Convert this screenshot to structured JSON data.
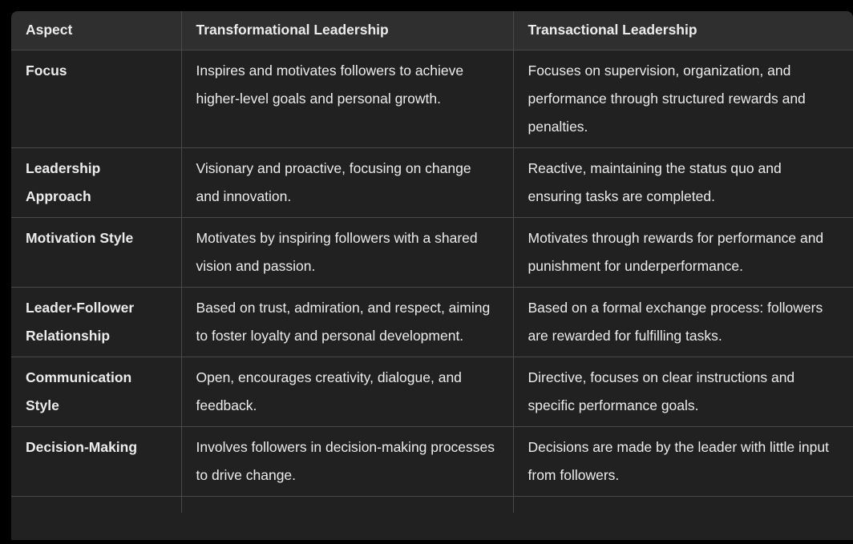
{
  "table": {
    "headers": [
      "Aspect",
      "Transformational Leadership",
      "Transactional Leadership"
    ],
    "rows": [
      {
        "aspect": "Focus",
        "transformational": "Inspires and motivates followers to achieve higher-level goals and personal growth.",
        "transactional": "Focuses on supervision, organization, and performance through structured rewards and penalties."
      },
      {
        "aspect": "Leadership Approach",
        "transformational": "Visionary and proactive, focusing on change and innovation.",
        "transactional": "Reactive, maintaining the status quo and ensuring tasks are completed."
      },
      {
        "aspect": "Motivation Style",
        "transformational": "Motivates by inspiring followers with a shared vision and passion.",
        "transactional": "Motivates through rewards for performance and punishment for underperformance."
      },
      {
        "aspect": "Leader-Follower Relationship",
        "transformational": "Based on trust, admiration, and respect, aiming to foster loyalty and personal development.",
        "transactional": "Based on a formal exchange process: followers are rewarded for fulfilling tasks."
      },
      {
        "aspect": "Communication Style",
        "transformational": "Open, encourages creativity, dialogue, and feedback.",
        "transactional": "Directive, focuses on clear instructions and specific performance goals."
      },
      {
        "aspect": "Decision-Making",
        "transformational": "Involves followers in decision-making processes to drive change.",
        "transactional": "Decisions are made by the leader with little input from followers."
      }
    ]
  },
  "colors": {
    "background": "#212121",
    "header_background": "#2f2f2f",
    "border": "#4a4a4a",
    "text": "#ececec"
  }
}
